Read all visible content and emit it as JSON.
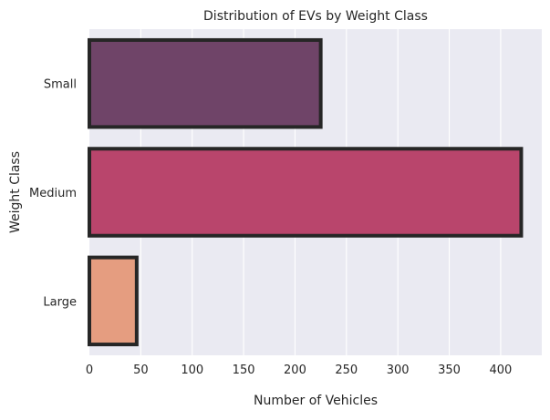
{
  "chart_data": {
    "type": "bar",
    "orientation": "horizontal",
    "title": "Distribution of EVs by Weight Class",
    "xlabel": "Number of Vehicles",
    "ylabel": "Weight Class",
    "categories": [
      "Small",
      "Medium",
      "Large"
    ],
    "values": [
      225,
      420,
      46
    ],
    "xlim": [
      0,
      440
    ],
    "xticks": [
      0,
      50,
      100,
      150,
      200,
      250,
      300,
      350,
      400
    ],
    "grid": true,
    "legend": "none",
    "colors": {
      "background": "#eaeaf2",
      "grid": "#ffffff",
      "bar_edge": "#262626",
      "bars": [
        "#6f4468",
        "#b9456c",
        "#e59d80"
      ]
    }
  }
}
